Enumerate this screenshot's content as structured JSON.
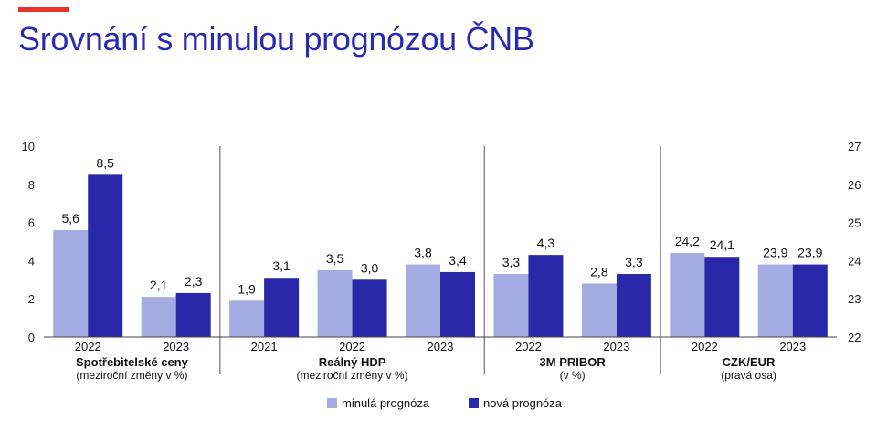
{
  "title": "Srovnání s minulou prognózou ČNB",
  "colors": {
    "accent": "#e8332d",
    "title": "#2b2bb0",
    "minula": "#a3ade3",
    "nova": "#2828a8"
  },
  "chart_data": {
    "type": "bar",
    "title": "Srovnání s minulou prognózou ČNB",
    "grid": false,
    "legend_position": "bottom",
    "left_axis": {
      "ylim": [
        0,
        10
      ],
      "ticks": [
        "0",
        "2",
        "4",
        "6",
        "8",
        "10"
      ]
    },
    "right_axis": {
      "ylim": [
        22,
        27
      ],
      "ticks": [
        "22",
        "23",
        "24",
        "25",
        "26",
        "27"
      ]
    },
    "series": [
      {
        "name": "minulá prognóza",
        "color": "#a3ade3"
      },
      {
        "name": "nová prognóza",
        "color": "#2828a8"
      }
    ],
    "groups": [
      {
        "label": "Spotřebitelské ceny",
        "sublabel": "(meziroční změny v %)",
        "axis": "left",
        "categories": [
          {
            "year": "2022",
            "values": [
              5.6,
              8.5
            ],
            "labels": [
              "5,6",
              "8,5"
            ]
          },
          {
            "year": "2023",
            "values": [
              2.1,
              2.3
            ],
            "labels": [
              "2,1",
              "2,3"
            ]
          }
        ]
      },
      {
        "label": "Reálný HDP",
        "sublabel": "(meziroční změny v %)",
        "axis": "left",
        "categories": [
          {
            "year": "2021",
            "values": [
              1.9,
              3.1
            ],
            "labels": [
              "1,9",
              "3,1"
            ]
          },
          {
            "year": "2022",
            "values": [
              3.5,
              3.0
            ],
            "labels": [
              "3,5",
              "3,0"
            ]
          },
          {
            "year": "2023",
            "values": [
              3.8,
              3.4
            ],
            "labels": [
              "3,8",
              "3,4"
            ]
          }
        ]
      },
      {
        "label": "3M PRIBOR",
        "sublabel": "(v %)",
        "axis": "left",
        "categories": [
          {
            "year": "2022",
            "values": [
              3.3,
              4.3
            ],
            "labels": [
              "3,3",
              "4,3"
            ]
          },
          {
            "year": "2023",
            "values": [
              2.8,
              3.3
            ],
            "labels": [
              "2,8",
              "3,3"
            ]
          }
        ]
      },
      {
        "label": "CZK/EUR",
        "sublabel": "(pravá osa)",
        "axis": "right",
        "categories": [
          {
            "year": "2022",
            "values": [
              24.2,
              24.1
            ],
            "labels": [
              "24,2",
              "24,1"
            ]
          },
          {
            "year": "2023",
            "values": [
              23.9,
              23.9
            ],
            "labels": [
              "23,9",
              "23,9"
            ]
          }
        ]
      }
    ]
  }
}
